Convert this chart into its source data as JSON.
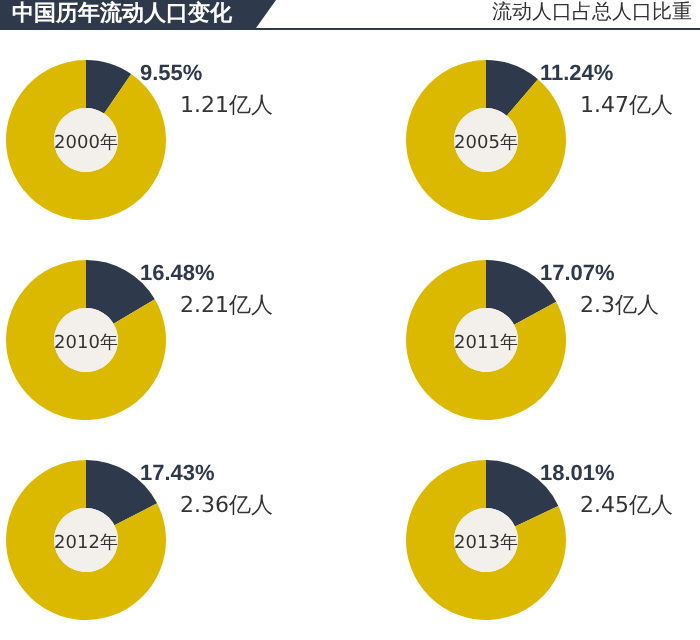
{
  "chart_data": [
    {
      "type": "donut",
      "title": "中国历年流动人口变化",
      "categories": [
        null,
        null
      ],
      "values": [
        9.55,
        90.45
      ],
      "colors": [
        "#2e3a4c",
        "#dbb900"
      ],
      "value_labels": [
        "9.55%",
        null
      ],
      "annotations": [
        "2000年",
        "1.21亿人"
      ]
    },
    {
      "type": "donut",
      "subtitle": "流动人口占总人口比重",
      "categories": [
        null,
        null
      ],
      "values": [
        11.24,
        88.76
      ],
      "colors": [
        "#2e3a4c",
        "#dbb900"
      ],
      "value_labels": [
        "11.24%",
        null
      ],
      "annotations": [
        "2005年",
        "1.47亿人"
      ]
    },
    {
      "type": "donut",
      "categories": [
        null,
        null
      ],
      "values": [
        16.48,
        83.52
      ],
      "colors": [
        "#2e3a4c",
        "#dbb900"
      ],
      "value_labels": [
        "16.48%",
        null
      ],
      "annotations": [
        "2010年",
        "2.21亿人"
      ]
    },
    {
      "type": "donut",
      "categories": [
        null,
        null
      ],
      "values": [
        17.07,
        82.93
      ],
      "colors": [
        "#2e3a4c",
        "#dbb900"
      ],
      "value_labels": [
        "17.07%",
        null
      ],
      "annotations": [
        "2011年",
        "2.3亿人"
      ]
    },
    {
      "type": "donut",
      "categories": [
        null,
        null
      ],
      "values": [
        17.43,
        82.57
      ],
      "colors": [
        "#2e3a4c",
        "#dbb900"
      ],
      "value_labels": [
        "17.43%",
        null
      ],
      "annotations": [
        "2012年",
        "2.36亿人"
      ]
    },
    {
      "type": "donut",
      "categories": [
        null,
        null
      ],
      "values": [
        18.01,
        81.99
      ],
      "colors": [
        "#2e3a4c",
        "#dbb900"
      ],
      "value_labels": [
        "18.01%",
        null
      ],
      "annotations": [
        "2013年",
        "2.45亿人"
      ]
    }
  ]
}
